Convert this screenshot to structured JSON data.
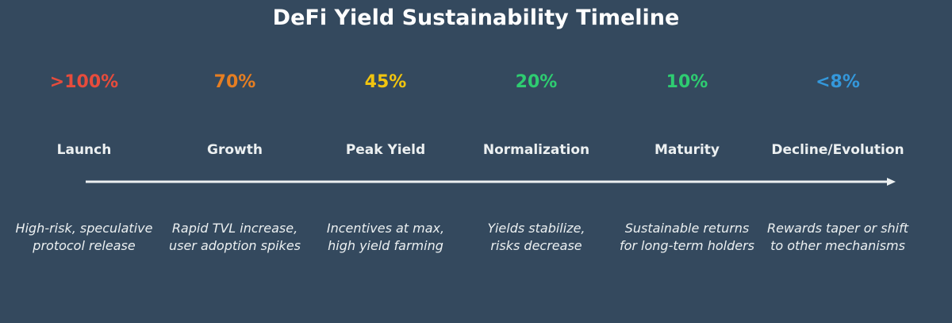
{
  "title": "DeFi Yield Sustainability Timeline",
  "colors": {
    "background": "#34495e",
    "text": "#ecf0f1",
    "arrow": "#ecf0f1"
  },
  "stages": [
    {
      "yield": ">100%",
      "name": "Launch",
      "desc_line1": "High-risk, speculative",
      "desc_line2": "protocol release",
      "color": "#e74c3c"
    },
    {
      "yield": "70%",
      "name": "Growth",
      "desc_line1": "Rapid TVL increase,",
      "desc_line2": "user adoption spikes",
      "color": "#e67e22"
    },
    {
      "yield": "45%",
      "name": "Peak Yield",
      "desc_line1": "Incentives at max,",
      "desc_line2": "high yield farming",
      "color": "#f1c40f"
    },
    {
      "yield": "20%",
      "name": "Normalization",
      "desc_line1": "Yields stabilize,",
      "desc_line2": "risks decrease",
      "color": "#2ecc71"
    },
    {
      "yield": "10%",
      "name": "Maturity",
      "desc_line1": "Sustainable returns",
      "desc_line2": "for long-term holders",
      "color": "#2ecc71"
    },
    {
      "yield": "<8%",
      "name": "Decline/Evolution",
      "desc_line1": "Rewards taper or shift",
      "desc_line2": "to other mechanisms",
      "color": "#3498db"
    }
  ]
}
